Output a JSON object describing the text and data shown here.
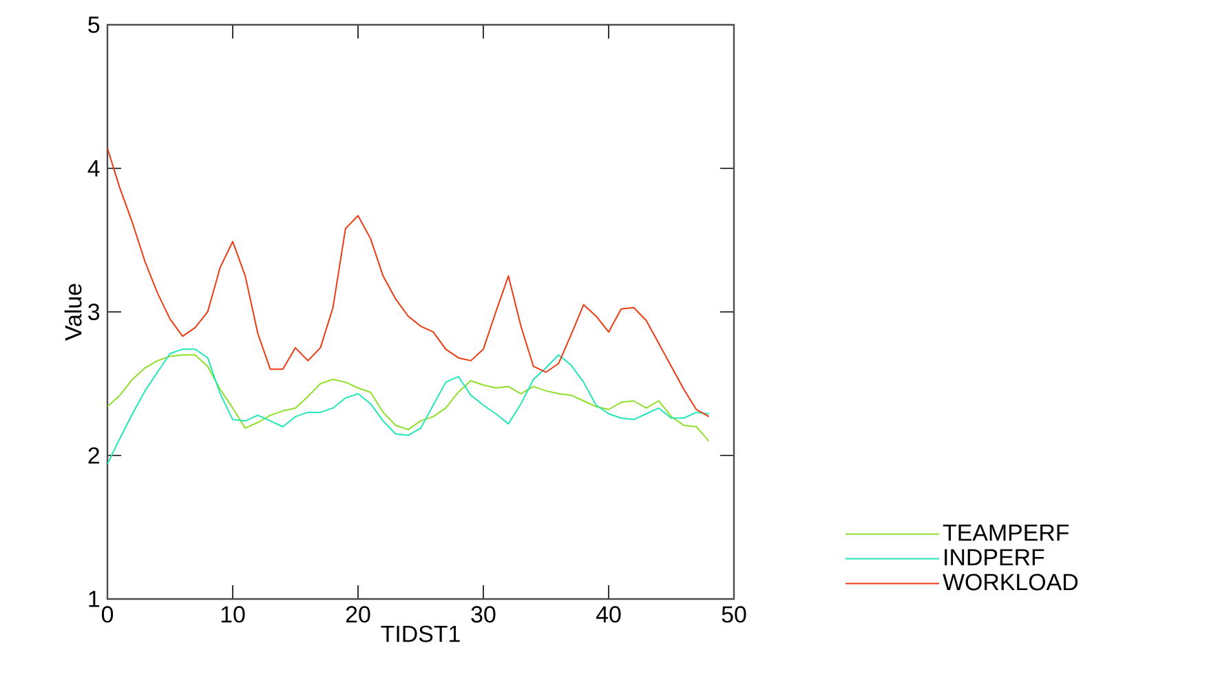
{
  "chart_data": {
    "type": "line",
    "xlabel": "TIDST1",
    "ylabel": "Value",
    "x": [
      0,
      1,
      2,
      3,
      4,
      5,
      6,
      7,
      8,
      9,
      10,
      11,
      12,
      13,
      14,
      15,
      16,
      17,
      18,
      19,
      20,
      21,
      22,
      23,
      24,
      25,
      26,
      27,
      28,
      29,
      30,
      31,
      32,
      33,
      34,
      35,
      36,
      37,
      38,
      39,
      40,
      41,
      42,
      43,
      44,
      45,
      46,
      47,
      48
    ],
    "series": [
      {
        "name": "TEAMPERF",
        "color": "#8ee02a",
        "values": [
          2.34,
          2.42,
          2.53,
          2.61,
          2.66,
          2.69,
          2.7,
          2.7,
          2.62,
          2.46,
          2.33,
          2.19,
          2.23,
          2.28,
          2.31,
          2.33,
          2.41,
          2.5,
          2.53,
          2.51,
          2.47,
          2.44,
          2.3,
          2.21,
          2.18,
          2.24,
          2.27,
          2.33,
          2.44,
          2.52,
          2.49,
          2.47,
          2.48,
          2.43,
          2.48,
          2.45,
          2.43,
          2.42,
          2.38,
          2.34,
          2.32,
          2.37,
          2.38,
          2.33,
          2.38,
          2.27,
          2.21,
          2.2,
          2.1
        ]
      },
      {
        "name": "INDPERF",
        "color": "#22e6b8",
        "values": [
          1.94,
          2.12,
          2.29,
          2.45,
          2.58,
          2.71,
          2.74,
          2.74,
          2.68,
          2.43,
          2.25,
          2.24,
          2.28,
          2.24,
          2.2,
          2.27,
          2.3,
          2.3,
          2.33,
          2.4,
          2.43,
          2.36,
          2.24,
          2.15,
          2.14,
          2.19,
          2.35,
          2.51,
          2.55,
          2.42,
          2.35,
          2.29,
          2.22,
          2.36,
          2.53,
          2.61,
          2.7,
          2.63,
          2.51,
          2.35,
          2.29,
          2.26,
          2.25,
          2.29,
          2.33,
          2.26,
          2.26,
          2.3,
          2.29
        ]
      },
      {
        "name": "WORKLOAD",
        "color": "#ee3a10",
        "values": [
          4.14,
          3.86,
          3.62,
          3.35,
          3.13,
          2.95,
          2.83,
          2.89,
          3.0,
          3.31,
          3.49,
          3.25,
          2.85,
          2.6,
          2.6,
          2.75,
          2.66,
          2.75,
          3.03,
          3.58,
          3.67,
          3.51,
          3.25,
          3.09,
          2.97,
          2.9,
          2.86,
          2.74,
          2.68,
          2.66,
          2.74,
          3.0,
          3.25,
          2.9,
          2.62,
          2.58,
          2.64,
          2.84,
          3.05,
          2.97,
          2.86,
          3.02,
          3.03,
          2.94,
          2.78,
          2.62,
          2.46,
          2.32,
          2.27
        ]
      }
    ],
    "xlim": [
      0,
      50
    ],
    "xticks": [
      0,
      10,
      20,
      30,
      40,
      50
    ],
    "ylim": [
      1,
      5
    ],
    "yticks": [
      1,
      2,
      3,
      4,
      5
    ],
    "grid": false,
    "legend": "bottom right",
    "marker": "none",
    "line_style": "solid"
  }
}
